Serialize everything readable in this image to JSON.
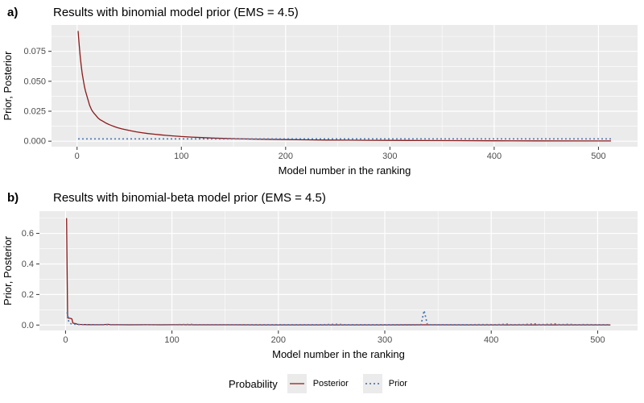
{
  "colors": {
    "panel_bg": "#EBEBEB",
    "grid": "#FFFFFF",
    "tick": "#333333",
    "axis_text": "#4D4D4D",
    "title_text": "#000000",
    "posterior": "#8B1A1A",
    "prior": "#4A7AB5"
  },
  "legend": {
    "title": "Probability",
    "position": "bottom",
    "items": [
      {
        "label": "Posterior",
        "style": "solid"
      },
      {
        "label": "Prior",
        "style": "dashed"
      }
    ]
  },
  "chart_data": [
    {
      "type": "line",
      "panel": "a",
      "tag": "a)",
      "title": "Results with binomial model prior (EMS = 4.5)",
      "xlabel": "Model number in the ranking",
      "ylabel": "Prior, Posterior",
      "grid": true,
      "xlim": [
        -24.5,
        537.5
      ],
      "ylim": [
        -0.0046,
        0.097
      ],
      "xticks": {
        "values": [
          0,
          100,
          200,
          300,
          400,
          500
        ],
        "labels": [
          "0",
          "100",
          "200",
          "300",
          "400",
          "500"
        ]
      },
      "yticks": {
        "values": [
          0,
          0.025,
          0.05,
          0.075
        ],
        "labels": [
          "0.000",
          "0.025",
          "0.050",
          "0.075"
        ]
      },
      "xminor": [
        50,
        150,
        250,
        350,
        450
      ],
      "yminor": [
        0.0125,
        0.0375,
        0.0625,
        0.0875
      ],
      "series": [
        {
          "name": "Posterior",
          "color": "#8B1A1A",
          "dash": null,
          "width": 1.3,
          "points": [
            [
              1,
              0.092
            ],
            [
              2,
              0.081
            ],
            [
              3,
              0.071
            ],
            [
              4,
              0.063
            ],
            [
              5,
              0.056
            ],
            [
              6,
              0.051
            ],
            [
              7,
              0.046
            ],
            [
              8,
              0.042
            ],
            [
              9,
              0.039
            ],
            [
              10,
              0.036
            ],
            [
              11,
              0.033
            ],
            [
              12,
              0.03
            ],
            [
              14,
              0.026
            ],
            [
              16,
              0.0235
            ],
            [
              18,
              0.0215
            ],
            [
              20,
              0.0195
            ],
            [
              22,
              0.018
            ],
            [
              25,
              0.0165
            ],
            [
              28,
              0.015
            ],
            [
              31,
              0.0138
            ],
            [
              35,
              0.0124
            ],
            [
              39,
              0.0112
            ],
            [
              43,
              0.0103
            ],
            [
              47,
              0.0095
            ],
            [
              52,
              0.0086
            ],
            [
              57,
              0.0078
            ],
            [
              62,
              0.0071
            ],
            [
              68,
              0.0064
            ],
            [
              74,
              0.0058
            ],
            [
              80,
              0.0053
            ],
            [
              86,
              0.0048
            ],
            [
              92,
              0.0044
            ],
            [
              100,
              0.0039
            ],
            [
              110,
              0.0034
            ],
            [
              120,
              0.003
            ],
            [
              130,
              0.0026
            ],
            [
              140,
              0.0023
            ],
            [
              150,
              0.0021
            ],
            [
              165,
              0.0018
            ],
            [
              180,
              0.0016
            ],
            [
              200,
              0.0013
            ],
            [
              220,
              0.0011
            ],
            [
              240,
              0.00095
            ],
            [
              260,
              0.00082
            ],
            [
              280,
              0.00071
            ],
            [
              300,
              0.00062
            ],
            [
              330,
              0.0005
            ],
            [
              360,
              0.00042
            ],
            [
              400,
              0.00032
            ],
            [
              440,
              0.00025
            ],
            [
              480,
              0.00019
            ],
            [
              512,
              0.00015
            ]
          ]
        },
        {
          "name": "Prior",
          "color": "#4A7AB5",
          "dash": "2,3",
          "width": 1.7,
          "points": [
            [
              1,
              0.00195
            ],
            [
              512,
              0.00195
            ]
          ]
        }
      ]
    },
    {
      "type": "line",
      "panel": "b",
      "tag": "b)",
      "title": "Results with binomial-beta model prior (EMS = 4.5)",
      "xlabel": "Model number in the ranking",
      "ylabel": "Prior, Posterior",
      "grid": true,
      "xlim": [
        -24.5,
        537.5
      ],
      "ylim": [
        -0.0355,
        0.7455
      ],
      "xticks": {
        "values": [
          0,
          100,
          200,
          300,
          400,
          500
        ],
        "labels": [
          "0",
          "100",
          "200",
          "300",
          "400",
          "500"
        ]
      },
      "yticks": {
        "values": [
          0,
          0.2,
          0.4,
          0.6
        ],
        "labels": [
          "0.0",
          "0.2",
          "0.4",
          "0.6"
        ]
      },
      "xminor": [
        50,
        150,
        250,
        350,
        450
      ],
      "yminor": [
        0.1,
        0.3,
        0.5,
        0.7
      ],
      "series": [
        {
          "name": "Posterior",
          "color": "#8B1A1A",
          "dash": null,
          "width": 1.3,
          "points": [
            [
              1,
              0.7
            ],
            [
              2,
              0.047
            ],
            [
              3,
              0.045
            ],
            [
              4,
              0.044
            ],
            [
              5,
              0.043
            ],
            [
              6,
              0.04
            ],
            [
              7,
              0.013
            ],
            [
              8,
              0.011
            ],
            [
              9,
              0.01
            ],
            [
              10,
              0.009
            ],
            [
              11,
              0.005
            ],
            [
              13,
              0.004
            ],
            [
              15,
              0.0035
            ],
            [
              18,
              0.003
            ],
            [
              22,
              0.0025
            ],
            [
              28,
              0.002
            ],
            [
              35,
              0.002
            ],
            [
              40,
              0.0045
            ],
            [
              42,
              0.002
            ],
            [
              50,
              0.0018
            ],
            [
              60,
              0.0015
            ],
            [
              75,
              0.0018
            ],
            [
              90,
              0.0015
            ],
            [
              100,
              0.002
            ],
            [
              120,
              0.0015
            ],
            [
              140,
              0.0012
            ],
            [
              160,
              0.0012
            ],
            [
              180,
              0.001
            ],
            [
              200,
              0.001
            ],
            [
              230,
              0.001
            ],
            [
              260,
              0.001
            ],
            [
              300,
              0.001
            ],
            [
              340,
              0.0015
            ],
            [
              380,
              0.001
            ],
            [
              420,
              0.001
            ],
            [
              450,
              0.001
            ],
            [
              480,
              0.001
            ],
            [
              512,
              0.001
            ]
          ]
        },
        {
          "name": "Prior",
          "color": "#4A7AB5",
          "dash": "2,3",
          "width": 1.7,
          "points": [
            [
              1,
              0.08
            ],
            [
              2,
              0.078
            ],
            [
              3,
              0.02
            ],
            [
              4,
              0.013
            ],
            [
              5,
              0.009
            ],
            [
              6,
              0.007
            ],
            [
              8,
              0.005
            ],
            [
              10,
              0.004
            ],
            [
              13,
              0.003
            ],
            [
              17,
              0.0025
            ],
            [
              25,
              0.002
            ],
            [
              40,
              0.002
            ],
            [
              60,
              0.002
            ],
            [
              80,
              0.0025
            ],
            [
              100,
              0.002
            ],
            [
              118,
              0.004
            ],
            [
              122,
              0.002
            ],
            [
              150,
              0.002
            ],
            [
              180,
              0.0025
            ],
            [
              210,
              0.002
            ],
            [
              240,
              0.002
            ],
            [
              256,
              0.005
            ],
            [
              262,
              0.002
            ],
            [
              290,
              0.002
            ],
            [
              320,
              0.002
            ],
            [
              334,
              0.002
            ],
            [
              337,
              0.095
            ],
            [
              340,
              0.002
            ],
            [
              370,
              0.002
            ],
            [
              395,
              0.003
            ],
            [
              405,
              0.002
            ],
            [
              415,
              0.006
            ],
            [
              419,
              0.002
            ],
            [
              430,
              0.003
            ],
            [
              441,
              0.008
            ],
            [
              446,
              0.002
            ],
            [
              460,
              0.007
            ],
            [
              465,
              0.002
            ],
            [
              473,
              0.005
            ],
            [
              478,
              0.002
            ],
            [
              490,
              0.003
            ],
            [
              500,
              0.002
            ],
            [
              512,
              0.002
            ]
          ]
        }
      ]
    }
  ]
}
